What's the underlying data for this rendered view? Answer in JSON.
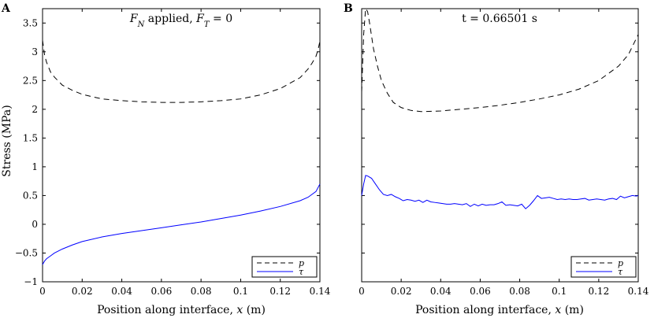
{
  "figure": {
    "ylabel": "Stress (MPa)"
  },
  "chart_data": [
    {
      "panel": "A",
      "type": "line",
      "title_parts": [
        {
          "text": "F",
          "italic": true
        },
        {
          "text": "N",
          "italic": true,
          "sub": true
        },
        {
          "text": " applied, ",
          "italic": false
        },
        {
          "text": "F",
          "italic": true
        },
        {
          "text": "T",
          "italic": true,
          "sub": true
        },
        {
          "text": " = 0",
          "italic": false
        }
      ],
      "xlabel_parts": [
        {
          "text": "Position along interface, ",
          "italic": false
        },
        {
          "text": "x",
          "italic": true
        },
        {
          "text": " (m)",
          "italic": false
        }
      ],
      "ylabel": "Stress (MPa)",
      "xlim": [
        0,
        0.14
      ],
      "ylim": [
        -1,
        3.75
      ],
      "xticks": [
        0,
        0.02,
        0.04,
        0.06,
        0.08,
        0.1,
        0.12,
        0.14
      ],
      "xtick_labels": [
        "0",
        "0.02",
        "0.04",
        "0.06",
        "0.08",
        "0.1",
        "0.12",
        "0.14"
      ],
      "yticks": [
        -1,
        -0.5,
        0,
        0.5,
        1,
        1.5,
        2,
        2.5,
        3,
        3.5
      ],
      "ytick_labels": [
        "−1",
        "−0.5",
        "0",
        "0.5",
        "1",
        "1.5",
        "2",
        "2.5",
        "3",
        "3.5"
      ],
      "legend": {
        "location": "bottom-right",
        "entries": [
          "p",
          "τ"
        ]
      },
      "series": [
        {
          "name": "p",
          "style": "dashed",
          "color": "#000000",
          "x": [
            0,
            0.001,
            0.002,
            0.004,
            0.006,
            0.008,
            0.01,
            0.015,
            0.02,
            0.03,
            0.04,
            0.05,
            0.06,
            0.07,
            0.08,
            0.09,
            0.1,
            0.11,
            0.12,
            0.13,
            0.134,
            0.136,
            0.138,
            0.139,
            0.14
          ],
          "values": [
            3.2,
            2.95,
            2.82,
            2.65,
            2.56,
            2.49,
            2.42,
            2.33,
            2.26,
            2.18,
            2.15,
            2.13,
            2.12,
            2.12,
            2.13,
            2.15,
            2.18,
            2.25,
            2.36,
            2.55,
            2.7,
            2.8,
            2.92,
            3.03,
            3.18
          ]
        },
        {
          "name": "τ",
          "style": "solid",
          "color": "#0000ff",
          "x": [
            0,
            0.001,
            0.002,
            0.004,
            0.006,
            0.01,
            0.015,
            0.02,
            0.03,
            0.04,
            0.05,
            0.06,
            0.07,
            0.08,
            0.09,
            0.1,
            0.11,
            0.12,
            0.13,
            0.134,
            0.138,
            0.14
          ],
          "values": [
            -0.7,
            -0.64,
            -0.6,
            -0.55,
            -0.5,
            -0.43,
            -0.36,
            -0.3,
            -0.22,
            -0.16,
            -0.11,
            -0.06,
            -0.01,
            0.04,
            0.1,
            0.16,
            0.23,
            0.31,
            0.41,
            0.47,
            0.57,
            0.7
          ]
        }
      ]
    },
    {
      "panel": "B",
      "type": "line",
      "title_parts": [
        {
          "text": "t = 0.66501 s",
          "italic": false
        }
      ],
      "xlabel_parts": [
        {
          "text": "Position along interface, ",
          "italic": false
        },
        {
          "text": "x",
          "italic": true
        },
        {
          "text": " (m)",
          "italic": false
        }
      ],
      "ylabel": "",
      "xlim": [
        0,
        0.14
      ],
      "ylim": [
        -1,
        3.75
      ],
      "xticks": [
        0,
        0.02,
        0.04,
        0.06,
        0.08,
        0.1,
        0.12,
        0.14
      ],
      "xtick_labels": [
        "0",
        "0.02",
        "0.04",
        "0.06",
        "0.08",
        "0.1",
        "0.12",
        "0.14"
      ],
      "yticks": [
        -1,
        -0.5,
        0,
        0.5,
        1,
        1.5,
        2,
        2.5,
        3,
        3.5
      ],
      "ytick_labels": [],
      "legend": {
        "location": "bottom-right",
        "entries": [
          "p",
          "τ"
        ]
      },
      "series": [
        {
          "name": "p",
          "style": "dashed",
          "color": "#000000",
          "x": [
            0,
            0.001,
            0.002,
            0.003,
            0.004,
            0.006,
            0.008,
            0.01,
            0.013,
            0.016,
            0.02,
            0.025,
            0.03,
            0.04,
            0.05,
            0.06,
            0.07,
            0.08,
            0.09,
            0.1,
            0.11,
            0.12,
            0.13,
            0.135,
            0.14
          ],
          "values": [
            2.3,
            3.3,
            3.75,
            3.7,
            3.5,
            3.05,
            2.75,
            2.5,
            2.28,
            2.12,
            2.03,
            1.98,
            1.96,
            1.97,
            2.0,
            2.03,
            2.07,
            2.12,
            2.18,
            2.25,
            2.35,
            2.5,
            2.75,
            2.95,
            3.3
          ]
        },
        {
          "name": "τ",
          "style": "solid",
          "color": "#0000ff",
          "x": [
            0,
            0.001,
            0.002,
            0.003,
            0.005,
            0.007,
            0.009,
            0.011,
            0.013,
            0.015,
            0.017,
            0.019,
            0.021,
            0.023,
            0.025,
            0.027,
            0.029,
            0.031,
            0.033,
            0.035,
            0.037,
            0.039,
            0.041,
            0.043,
            0.045,
            0.047,
            0.049,
            0.051,
            0.053,
            0.055,
            0.057,
            0.059,
            0.061,
            0.063,
            0.065,
            0.067,
            0.069,
            0.071,
            0.073,
            0.075,
            0.077,
            0.079,
            0.081,
            0.083,
            0.085,
            0.087,
            0.089,
            0.091,
            0.093,
            0.095,
            0.097,
            0.099,
            0.101,
            0.103,
            0.105,
            0.107,
            0.109,
            0.111,
            0.113,
            0.115,
            0.117,
            0.119,
            0.121,
            0.123,
            0.125,
            0.127,
            0.129,
            0.131,
            0.133,
            0.135,
            0.137,
            0.139,
            0.14
          ],
          "values": [
            0.5,
            0.7,
            0.85,
            0.84,
            0.8,
            0.7,
            0.6,
            0.52,
            0.5,
            0.52,
            0.48,
            0.45,
            0.41,
            0.43,
            0.42,
            0.4,
            0.42,
            0.38,
            0.42,
            0.39,
            0.38,
            0.37,
            0.36,
            0.35,
            0.35,
            0.36,
            0.35,
            0.34,
            0.36,
            0.31,
            0.35,
            0.32,
            0.35,
            0.33,
            0.34,
            0.34,
            0.36,
            0.39,
            0.33,
            0.34,
            0.33,
            0.32,
            0.35,
            0.27,
            0.33,
            0.41,
            0.5,
            0.45,
            0.46,
            0.47,
            0.45,
            0.43,
            0.44,
            0.43,
            0.44,
            0.43,
            0.43,
            0.44,
            0.45,
            0.42,
            0.43,
            0.44,
            0.43,
            0.42,
            0.44,
            0.45,
            0.43,
            0.49,
            0.46,
            0.48,
            0.5,
            0.49,
            0.5
          ]
        }
      ]
    }
  ]
}
